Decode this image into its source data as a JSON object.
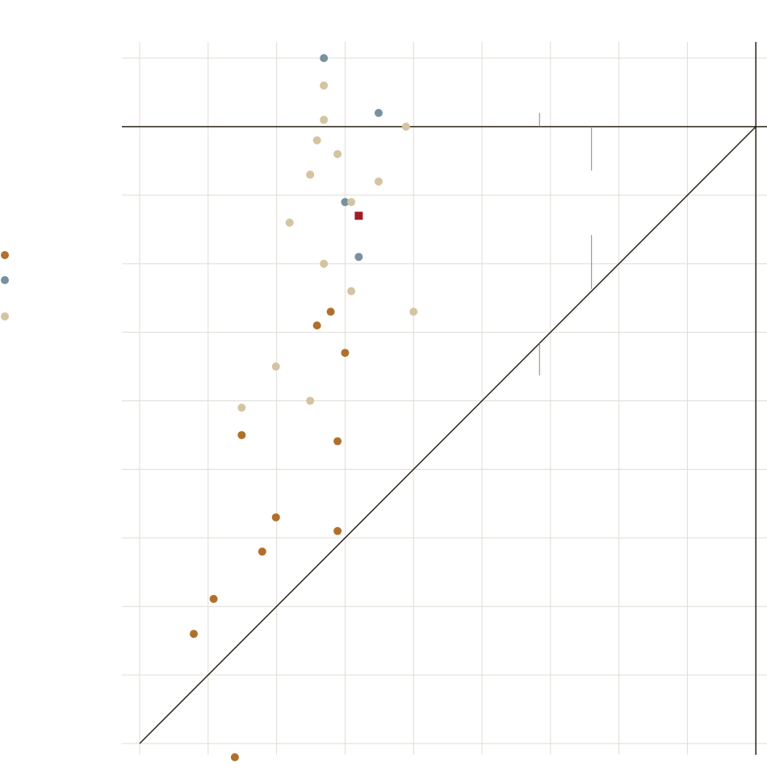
{
  "chart_data": {
    "type": "scatter",
    "title": "",
    "xlabel": "",
    "ylabel": "",
    "xlim": [
      0,
      9
    ],
    "ylim": [
      0,
      10
    ],
    "grid": true,
    "reference_lines": {
      "diagonal_y_equals_x": true,
      "horizontal_at_y": 9,
      "vertical_at_x": 9
    },
    "legend_placement": "left",
    "series": [
      {
        "color": "#b0702c",
        "marker": "circle",
        "points": [
          [
            2.79,
            6.3
          ],
          [
            2.59,
            6.1
          ],
          [
            3.0,
            5.7
          ],
          [
            1.49,
            4.5
          ],
          [
            2.89,
            4.41
          ],
          [
            1.99,
            3.3
          ],
          [
            2.89,
            3.1
          ],
          [
            1.79,
            2.8
          ],
          [
            1.08,
            2.11
          ],
          [
            0.79,
            1.6
          ],
          [
            1.39,
            -0.2
          ]
        ]
      },
      {
        "color": "#7890a0",
        "marker": "circle",
        "points": [
          [
            2.69,
            10.0
          ],
          [
            3.49,
            9.2
          ],
          [
            3.0,
            7.9
          ],
          [
            3.2,
            7.1
          ]
        ]
      },
      {
        "color": "#d4c4a0",
        "marker": "circle",
        "points": [
          [
            2.69,
            9.6
          ],
          [
            2.69,
            9.1
          ],
          [
            3.89,
            9.0
          ],
          [
            2.59,
            8.8
          ],
          [
            2.89,
            8.6
          ],
          [
            2.49,
            8.3
          ],
          [
            3.49,
            8.2
          ],
          [
            3.09,
            7.9
          ],
          [
            2.19,
            7.6
          ],
          [
            2.69,
            7.0
          ],
          [
            3.09,
            6.6
          ],
          [
            4.0,
            6.3
          ],
          [
            1.99,
            5.5
          ],
          [
            2.49,
            5.0
          ],
          [
            1.49,
            4.9
          ]
        ]
      },
      {
        "color": "#a01c28",
        "marker": "square",
        "points": [
          [
            3.2,
            7.7
          ]
        ]
      }
    ],
    "range_segments": [
      {
        "x": 5.84,
        "y0": 9.0,
        "y1": 9.2
      },
      {
        "x": 6.6,
        "y0": 8.36,
        "y1": 9.0
      },
      {
        "x": 6.6,
        "y0": 6.63,
        "y1": 7.42
      },
      {
        "x": 5.84,
        "y0": 5.37,
        "y1": 5.84
      }
    ],
    "colors": {
      "axis": "#2a2418",
      "grid": "#e0ddd6",
      "segment": "#8a8478"
    }
  }
}
